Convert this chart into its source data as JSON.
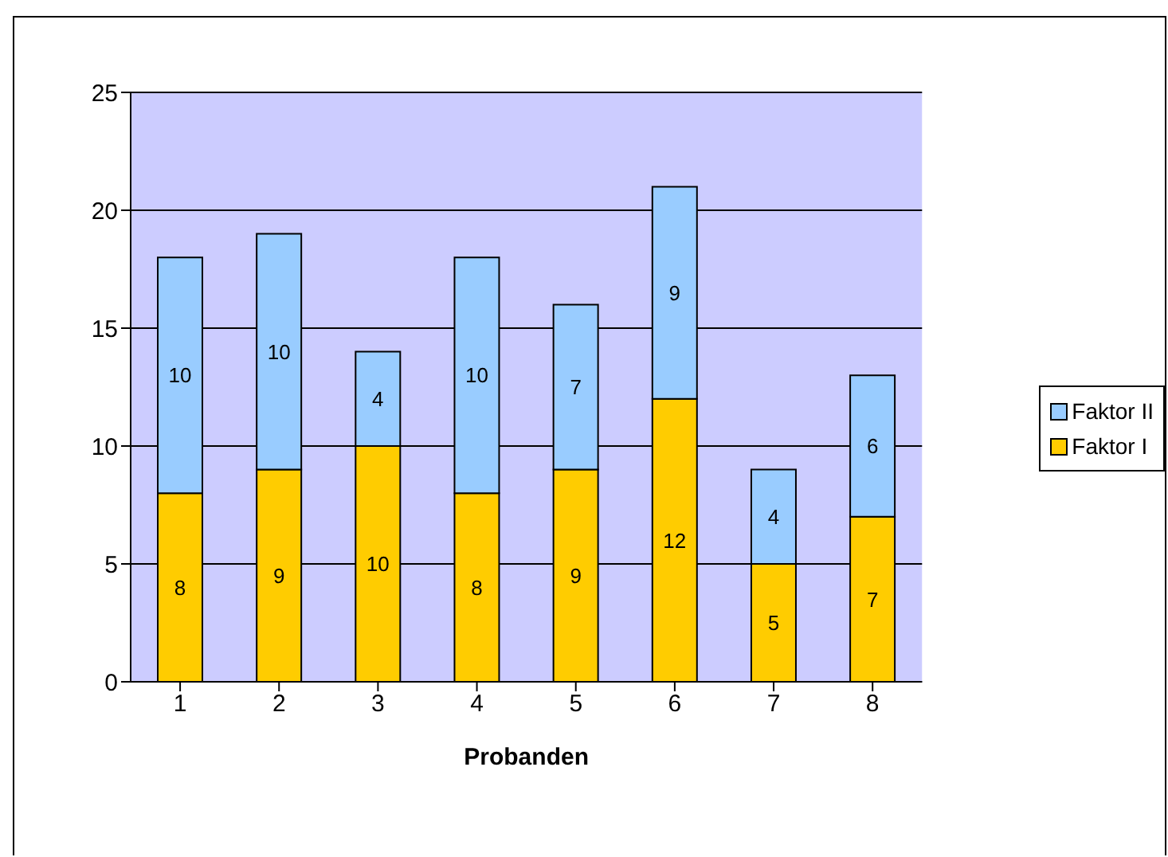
{
  "chart_data": {
    "type": "bar",
    "xlabel": "Probanden",
    "categories": [
      "1",
      "2",
      "3",
      "4",
      "5",
      "6",
      "7",
      "8"
    ],
    "series": [
      {
        "name": "Faktor I",
        "color": "#ffcc00",
        "values": [
          8,
          9,
          10,
          8,
          9,
          12,
          5,
          7
        ]
      },
      {
        "name": "Faktor II",
        "color": "#99ccff",
        "values": [
          10,
          10,
          4,
          10,
          7,
          9,
          4,
          6
        ]
      }
    ],
    "stacked": true,
    "ylim": [
      0,
      25
    ],
    "yticks": [
      0,
      5,
      10,
      15,
      20,
      25
    ],
    "grid": "y",
    "legend": "right",
    "data_labels": true
  }
}
